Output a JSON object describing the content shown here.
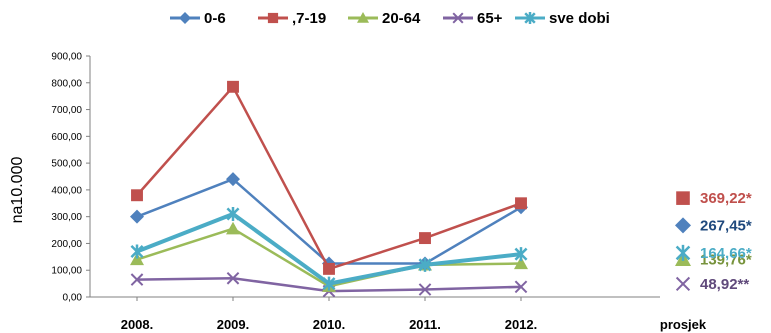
{
  "chart_data": {
    "type": "line",
    "title": "",
    "ylabel": "na10.000",
    "xlabel": "",
    "categories": [
      "2008.",
      "2009.",
      "2010.",
      "2011.",
      "2012."
    ],
    "ylim": [
      0,
      900
    ],
    "yticks": [
      "0,00",
      "100,00",
      "200,00",
      "300,00",
      "400,00",
      "500,00",
      "600,00",
      "700,00",
      "800,00",
      "900,00"
    ],
    "grid": false,
    "legend_position": "top",
    "average_category": "prosjek",
    "series": [
      {
        "name": "0-6",
        "color": "#4f81bd",
        "marker": "diamond",
        "values": [
          300,
          440,
          125,
          125,
          335
        ],
        "average": 267.45,
        "average_label": "267,45*",
        "label_color": "#1f497d"
      },
      {
        "name": ",7-19",
        "color": "#c0504d",
        "marker": "square",
        "values": [
          380,
          785,
          105,
          220,
          350
        ],
        "average": 369.22,
        "average_label": "369,22*",
        "label_color": "#c0504d"
      },
      {
        "name": "20-64",
        "color": "#9bbb59",
        "marker": "triangle",
        "values": [
          140,
          255,
          40,
          120,
          125
        ],
        "average": 139.76,
        "average_label": "139,76*",
        "label_color": "#77933c"
      },
      {
        "name": "65+",
        "color": "#8064a2",
        "marker": "x",
        "values": [
          65,
          70,
          22,
          28,
          38
        ],
        "average": 48.92,
        "average_label": "48,92**",
        "label_color": "#604a7b"
      },
      {
        "name": "sve dobi",
        "color": "#4bacc6",
        "marker": "asterisk",
        "values": [
          170,
          310,
          50,
          120,
          160
        ],
        "average": 164.66,
        "average_label": "164,66*",
        "label_color": "#4bacc6"
      }
    ]
  }
}
